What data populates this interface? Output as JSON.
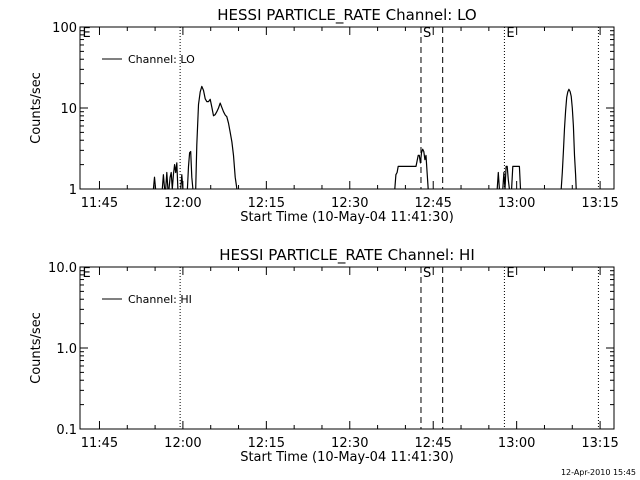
{
  "chart_data": [
    {
      "type": "line",
      "title": "HESSI PARTICLE_RATE Channel: LO",
      "xlabel": "Start Time (10-May-04 11:41:30)",
      "ylabel": "Counts/sec",
      "xrange_min": [
        0,
        96
      ],
      "xticks": [
        {
          "min": 3.5,
          "label": "11:45"
        },
        {
          "min": 18.5,
          "label": "12:00"
        },
        {
          "min": 33.5,
          "label": "12:15"
        },
        {
          "min": 48.5,
          "label": "12:30"
        },
        {
          "min": 63.5,
          "label": "12:45"
        },
        {
          "min": 78.5,
          "label": "13:00"
        },
        {
          "min": 93.5,
          "label": "13:15"
        }
      ],
      "ylog": true,
      "ylim": [
        1,
        100
      ],
      "yticks": [
        {
          "v": 1,
          "label": "1"
        },
        {
          "v": 10,
          "label": "10"
        },
        {
          "v": 100,
          "label": "100"
        }
      ],
      "legend": {
        "placement": "top-left",
        "label": "Channel: LO"
      },
      "markers": [
        {
          "min": 0.1,
          "label": "E",
          "style": "none"
        },
        {
          "min": 18,
          "label": "",
          "style": "dotted"
        },
        {
          "min": 61.3,
          "label": "S",
          "style": "dashed"
        },
        {
          "min": 65.2,
          "label": "",
          "style": "dashed"
        },
        {
          "min": 76.3,
          "label": "E",
          "style": "dotted"
        },
        {
          "min": 93.2,
          "label": "",
          "style": "dotted"
        }
      ],
      "series": [
        {
          "name": "Channel: LO",
          "segments": [
            [
              [
                13.2,
                0.8
              ],
              [
                13.4,
                1.4
              ],
              [
                13.6,
                0.8
              ]
            ],
            [
              [
                14.8,
                0.8
              ],
              [
                15.0,
                1.5
              ],
              [
                15.2,
                0.9
              ],
              [
                15.4,
                1.0
              ],
              [
                15.6,
                1.6
              ],
              [
                15.8,
                0.8
              ]
            ],
            [
              [
                16.0,
                0.8
              ],
              [
                16.2,
                1.4
              ],
              [
                16.4,
                1.6
              ],
              [
                16.6,
                0.9
              ],
              [
                16.8,
                1.5
              ],
              [
                17.0,
                2.0
              ],
              [
                17.2,
                1.6
              ],
              [
                17.4,
                2.1
              ],
              [
                17.6,
                0.8
              ]
            ],
            [
              [
                18.1,
                0.8
              ],
              [
                18.3,
                1.5
              ],
              [
                18.5,
                0.8
              ]
            ],
            [
              [
                19.3,
                0.8
              ],
              [
                19.5,
                1.9
              ],
              [
                19.7,
                2.8
              ],
              [
                19.9,
                2.9
              ],
              [
                20.1,
                1.4
              ],
              [
                20.3,
                0.8
              ]
            ],
            [
              [
                20.8,
                0.8
              ],
              [
                21.0,
                3.5
              ],
              [
                21.3,
                11.0
              ],
              [
                21.6,
                15.8
              ],
              [
                21.9,
                18.5
              ],
              [
                22.2,
                16.5
              ],
              [
                22.5,
                13.0
              ],
              [
                22.8,
                12.0
              ],
              [
                23.1,
                12.0
              ],
              [
                23.4,
                12.8
              ],
              [
                23.7,
                10.3
              ],
              [
                24.0,
                8.0
              ],
              [
                24.3,
                8.3
              ],
              [
                24.6,
                9.0
              ],
              [
                24.9,
                10.0
              ],
              [
                25.2,
                11.5
              ],
              [
                25.5,
                10.2
              ],
              [
                25.8,
                9.0
              ],
              [
                26.1,
                8.2
              ],
              [
                26.4,
                7.8
              ],
              [
                26.7,
                6.5
              ],
              [
                27.0,
                5.0
              ],
              [
                27.3,
                3.8
              ],
              [
                27.6,
                2.6
              ],
              [
                27.9,
                1.4
              ],
              [
                28.2,
                0.8
              ]
            ],
            [
              [
                56.6,
                0.8
              ],
              [
                56.8,
                1.5
              ],
              [
                57.0,
                1.6
              ],
              [
                57.2,
                1.9
              ],
              [
                58.0,
                1.9
              ],
              [
                58.8,
                1.9
              ],
              [
                59.6,
                1.9
              ],
              [
                60.4,
                1.9
              ],
              [
                60.8,
                2.6
              ],
              [
                61.0,
                2.6
              ],
              [
                61.2,
                2.1
              ],
              [
                61.4,
                2.8
              ],
              [
                61.6,
                3.1
              ],
              [
                61.8,
                2.9
              ],
              [
                62.0,
                2.3
              ],
              [
                62.2,
                2.6
              ],
              [
                62.4,
                1.6
              ],
              [
                62.6,
                0.8
              ]
            ],
            [
              [
                75.0,
                0.8
              ],
              [
                75.2,
                1.6
              ],
              [
                75.4,
                0.8
              ]
            ],
            [
              [
                76.0,
                0.8
              ],
              [
                76.2,
                1.6
              ],
              [
                76.4,
                0.9
              ],
              [
                76.6,
                1.9
              ],
              [
                76.8,
                1.9
              ],
              [
                77.0,
                1.3
              ],
              [
                77.2,
                0.8
              ]
            ],
            [
              [
                77.6,
                0.8
              ],
              [
                77.8,
                1.9
              ],
              [
                78.6,
                1.9
              ],
              [
                79.0,
                1.9
              ],
              [
                79.2,
                0.8
              ]
            ],
            [
              [
                86.5,
                0.8
              ],
              [
                86.7,
                1.6
              ],
              [
                86.9,
                2.9
              ],
              [
                87.1,
                5.6
              ],
              [
                87.3,
                9.2
              ],
              [
                87.5,
                13.5
              ],
              [
                87.7,
                15.8
              ],
              [
                87.9,
                17.0
              ],
              [
                88.1,
                16.0
              ],
              [
                88.3,
                14.0
              ],
              [
                88.5,
                10.0
              ],
              [
                88.7,
                6.0
              ],
              [
                88.9,
                2.6
              ],
              [
                89.1,
                1.5
              ],
              [
                89.2,
                0.8
              ]
            ]
          ]
        }
      ]
    },
    {
      "type": "line",
      "title": "HESSI PARTICLE_RATE Channel: HI",
      "xlabel": "Start Time (10-May-04 11:41:30)",
      "ylabel": "Counts/sec",
      "xrange_min": [
        0,
        96
      ],
      "xticks": [
        {
          "min": 3.5,
          "label": "11:45"
        },
        {
          "min": 18.5,
          "label": "12:00"
        },
        {
          "min": 33.5,
          "label": "12:15"
        },
        {
          "min": 48.5,
          "label": "12:30"
        },
        {
          "min": 63.5,
          "label": "12:45"
        },
        {
          "min": 78.5,
          "label": "13:00"
        },
        {
          "min": 93.5,
          "label": "13:15"
        }
      ],
      "ylog": true,
      "ylim": [
        0.1,
        10
      ],
      "yticks": [
        {
          "v": 0.1,
          "label": "0.1"
        },
        {
          "v": 1,
          "label": "1.0"
        },
        {
          "v": 10,
          "label": "10.0"
        }
      ],
      "legend": {
        "placement": "top-left",
        "label": "Channel: HI"
      },
      "markers": [
        {
          "min": 0.1,
          "label": "E",
          "style": "none"
        },
        {
          "min": 18,
          "label": "",
          "style": "dotted"
        },
        {
          "min": 61.3,
          "label": "S",
          "style": "dashed"
        },
        {
          "min": 65.2,
          "label": "",
          "style": "dashed"
        },
        {
          "min": 76.3,
          "label": "E",
          "style": "dotted"
        },
        {
          "min": 93.2,
          "label": "",
          "style": "dotted"
        }
      ],
      "series": [
        {
          "name": "Channel: HI",
          "segments": []
        }
      ]
    }
  ],
  "timestamp": "12-Apr-2010 15:45"
}
